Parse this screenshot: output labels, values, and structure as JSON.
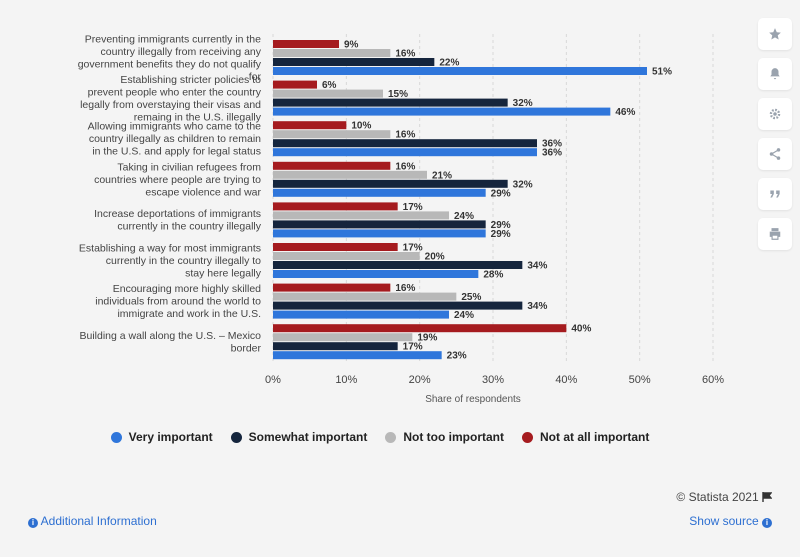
{
  "chart_data": {
    "type": "bar",
    "orientation": "horizontal",
    "categories": [
      "Preventing immigrants currently in the country illegally from receiving any government benefits they do not qualify for",
      "Establishing stricter policies to prevent people who enter the country legally from overstaying their visas and remaing in the U.S. illegally",
      "Allowing immigrants who came to the country illegally as children to remain in the U.S. and apply for legal status",
      "Taking in civilian refugees from countries where people are trying to escape violence and war",
      "Increase deportations of immigrants currently in the country illegally",
      "Establishing a way for most immigrants currently in the country illegally to stay here legally",
      "Encouraging more highly skilled individuals from around the world to immigrate and work in the U.S.",
      "Building a wall along the U.S. – Mexico border"
    ],
    "series": [
      {
        "name": "Not at all important",
        "color": "#a51b1f",
        "values": [
          9,
          6,
          10,
          16,
          17,
          17,
          16,
          40
        ]
      },
      {
        "name": "Not too important",
        "color": "#b8b8b8",
        "values": [
          16,
          15,
          16,
          21,
          24,
          20,
          25,
          19
        ]
      },
      {
        "name": "Somewhat important",
        "color": "#15253d",
        "values": [
          22,
          32,
          36,
          32,
          29,
          34,
          34,
          17
        ]
      },
      {
        "name": "Very important",
        "color": "#2f76db",
        "values": [
          51,
          46,
          36,
          29,
          29,
          28,
          24,
          23
        ]
      }
    ],
    "xlabel": "Share of respondents",
    "xlim": [
      0,
      60
    ],
    "ticks": [
      "0%",
      "10%",
      "20%",
      "30%",
      "40%",
      "50%",
      "60%"
    ],
    "grid": true,
    "legend_position": "bottom",
    "legend_order": [
      "Very important",
      "Somewhat important",
      "Not too important",
      "Not at all important"
    ]
  },
  "footer": {
    "copyright": "© Statista 2021",
    "additional_info": "Additional Information",
    "show_source": "Show source"
  },
  "sidebar_icons": [
    "star-icon",
    "bell-icon",
    "gear-icon",
    "share-icon",
    "quote-icon",
    "print-icon"
  ]
}
